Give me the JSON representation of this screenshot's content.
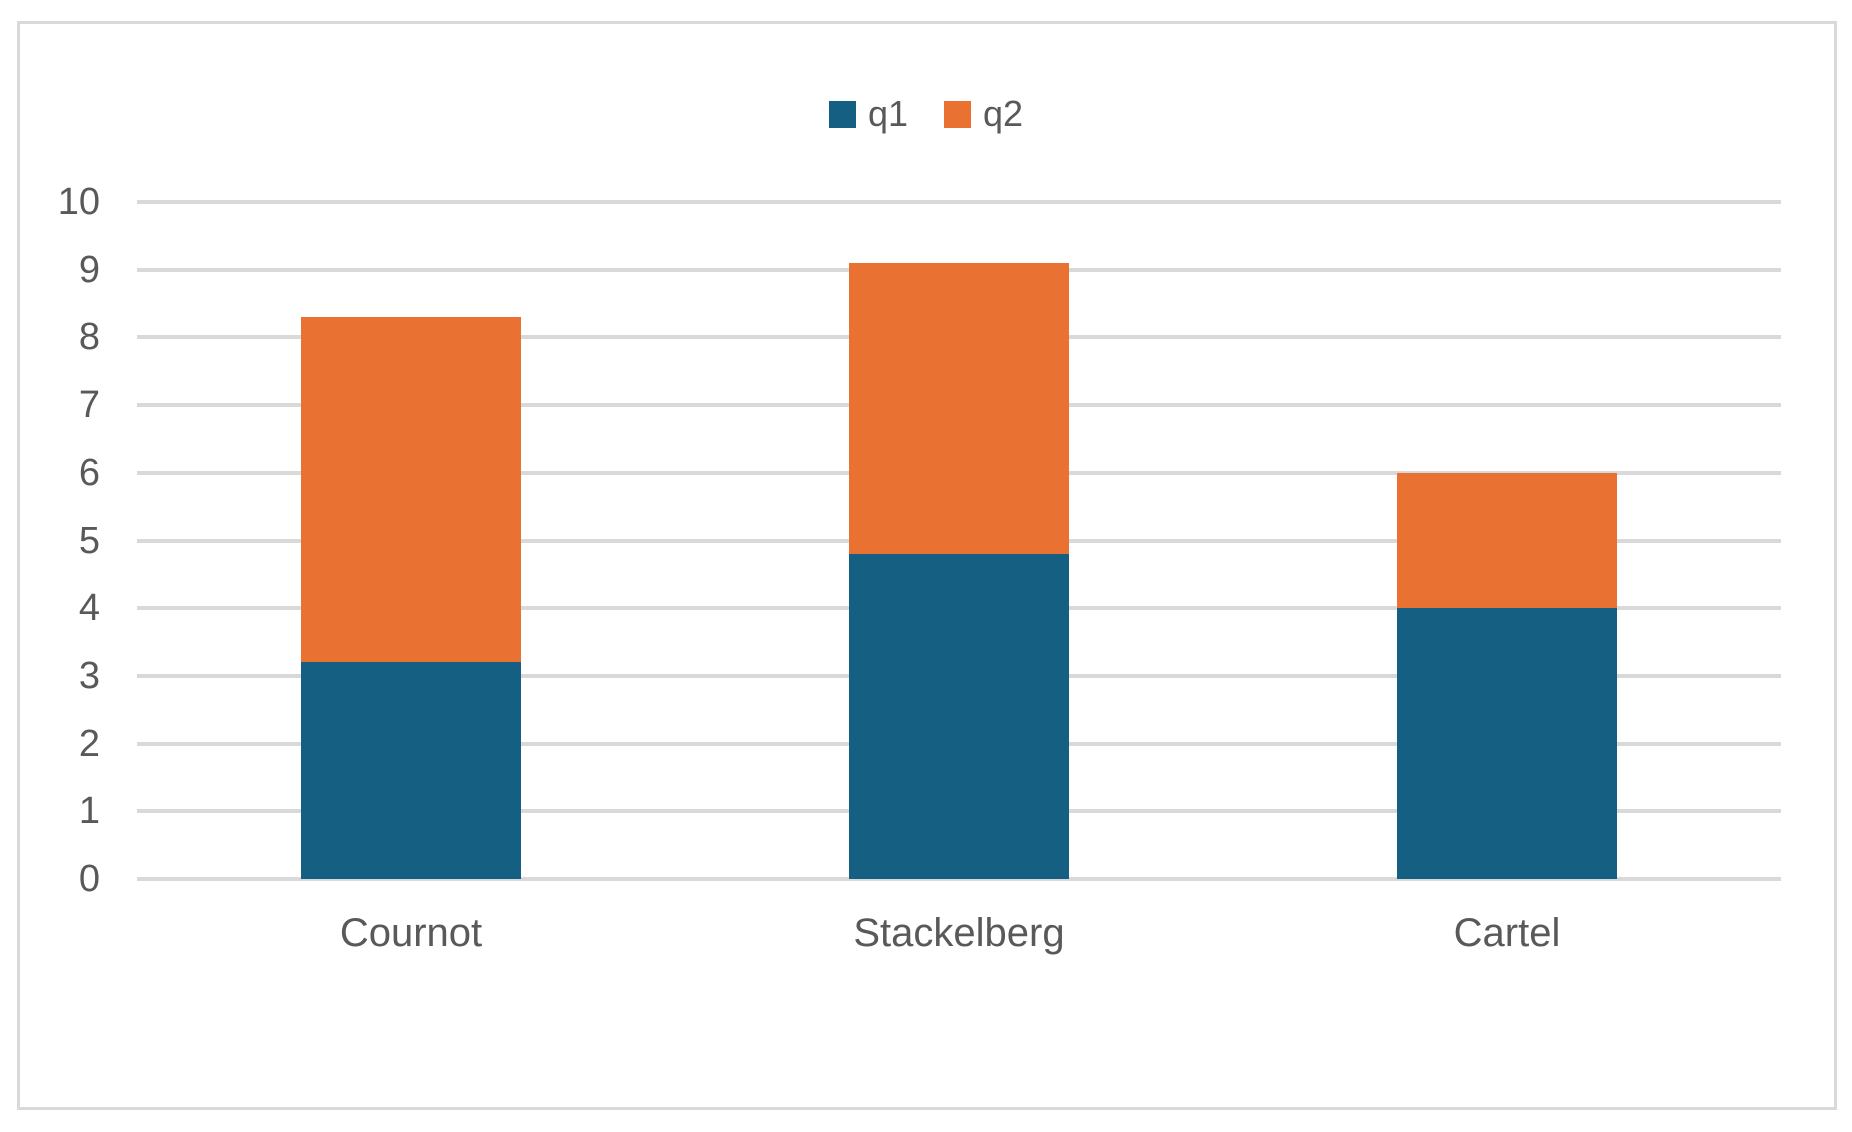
{
  "frame": {
    "background": "#ffffff",
    "border_color": "#d9d9d9"
  },
  "chart_data": {
    "type": "bar",
    "stacked": true,
    "orientation": "vertical-columns",
    "title": "",
    "xlabel": "",
    "ylabel": "",
    "categories": [
      "Cournot",
      "Stackelberg",
      "Cartel"
    ],
    "series": [
      {
        "name": "q1",
        "color": "#156082",
        "values": [
          3.2,
          4.8,
          4.0
        ]
      },
      {
        "name": "q2",
        "color": "#E97132",
        "values": [
          5.1,
          4.3,
          2.0
        ]
      }
    ],
    "stack_totals": [
      8.3,
      9.1,
      6.0
    ],
    "ylim": [
      0,
      10
    ],
    "yticks": [
      0,
      1,
      2,
      3,
      4,
      5,
      6,
      7,
      8,
      9,
      10
    ],
    "grid": true,
    "gridline_color": "#d9d9d9",
    "axis_text_color": "#595959",
    "legend_position": "top-center"
  }
}
